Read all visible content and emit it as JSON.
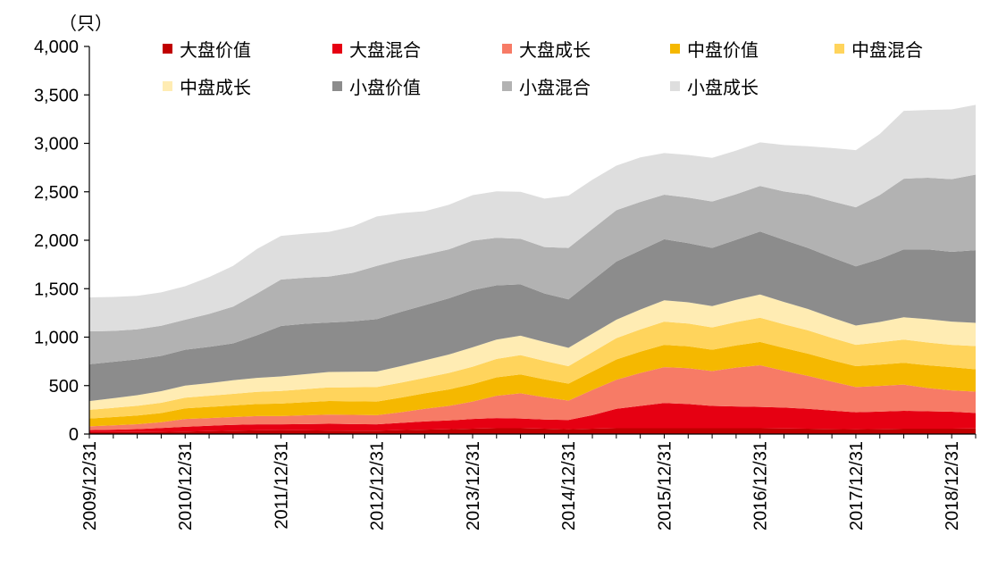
{
  "chart_data": {
    "type": "area",
    "stacked": true,
    "unit_label": "（只）",
    "categories": [
      "2009/12/31",
      "2010/03/31",
      "2010/06/30",
      "2010/09/30",
      "2010/12/31",
      "2011/03/31",
      "2011/06/30",
      "2011/09/30",
      "2011/12/31",
      "2012/03/31",
      "2012/06/30",
      "2012/09/30",
      "2012/12/31",
      "2013/03/31",
      "2013/06/30",
      "2013/09/30",
      "2013/12/31",
      "2014/03/31",
      "2014/06/30",
      "2014/09/30",
      "2014/12/31",
      "2015/03/31",
      "2015/06/30",
      "2015/09/30",
      "2015/12/31",
      "2016/03/31",
      "2016/06/30",
      "2016/09/30",
      "2016/12/31",
      "2017/03/31",
      "2017/06/30",
      "2017/09/30",
      "2017/12/31",
      "2018/03/31",
      "2018/06/30",
      "2018/09/30",
      "2018/12/31",
      "2019/03/31"
    ],
    "xtick_labels": [
      "2009/12/31",
      "2010/12/31",
      "2011/12/31",
      "2012/12/31",
      "2013/12/31",
      "2014/12/31",
      "2015/12/31",
      "2016/12/31",
      "2017/12/31",
      "2018/12/31"
    ],
    "ylim": [
      0,
      4000
    ],
    "yticks": [
      0,
      500,
      1000,
      1500,
      2000,
      2500,
      3000,
      3500,
      4000
    ],
    "ytick_labels": [
      "0",
      "500",
      "1,000",
      "1,500",
      "2,000",
      "2,500",
      "3,000",
      "3,500",
      "4,000"
    ],
    "series": [
      {
        "name": "大盘价值",
        "color": "#C00000",
        "values": [
          20,
          20,
          21,
          22,
          25,
          30,
          35,
          38,
          40,
          38,
          36,
          35,
          35,
          40,
          45,
          50,
          55,
          60,
          60,
          55,
          50,
          55,
          60,
          60,
          60,
          60,
          60,
          60,
          60,
          58,
          55,
          52,
          50,
          52,
          55,
          55,
          55,
          58
        ]
      },
      {
        "name": "大盘混合",
        "color": "#E60012",
        "values": [
          20,
          25,
          30,
          40,
          50,
          55,
          60,
          62,
          60,
          65,
          70,
          68,
          65,
          75,
          85,
          90,
          100,
          105,
          100,
          95,
          95,
          140,
          200,
          230,
          260,
          250,
          230,
          225,
          220,
          215,
          205,
          190,
          175,
          180,
          185,
          180,
          175,
          160
        ]
      },
      {
        "name": "大盘成长",
        "color": "#F77B66",
        "values": [
          40,
          45,
          50,
          60,
          80,
          80,
          80,
          85,
          85,
          90,
          95,
          95,
          95,
          110,
          130,
          150,
          180,
          230,
          260,
          230,
          200,
          260,
          300,
          340,
          370,
          370,
          360,
          400,
          430,
          380,
          340,
          300,
          260,
          265,
          270,
          240,
          220,
          220
        ]
      },
      {
        "name": "中盘价值",
        "color": "#F5B800",
        "values": [
          80,
          85,
          90,
          95,
          110,
          115,
          120,
          125,
          130,
          135,
          140,
          140,
          140,
          150,
          160,
          170,
          180,
          190,
          195,
          185,
          175,
          190,
          210,
          220,
          230,
          225,
          220,
          230,
          240,
          235,
          230,
          220,
          215,
          220,
          225,
          235,
          240,
          230
        ]
      },
      {
        "name": "中盘混合",
        "color": "#FFD45C",
        "values": [
          90,
          95,
          100,
          105,
          110,
          115,
          120,
          125,
          130,
          135,
          140,
          145,
          150,
          155,
          160,
          170,
          180,
          190,
          200,
          190,
          180,
          200,
          220,
          230,
          240,
          235,
          230,
          240,
          250,
          245,
          240,
          230,
          220,
          230,
          240,
          235,
          230,
          240
        ]
      },
      {
        "name": "中盘成长",
        "color": "#FFECB3",
        "values": [
          90,
          100,
          110,
          120,
          125,
          130,
          140,
          145,
          150,
          155,
          160,
          160,
          160,
          170,
          180,
          190,
          200,
          200,
          200,
          195,
          190,
          190,
          190,
          205,
          220,
          220,
          220,
          230,
          240,
          230,
          220,
          210,
          200,
          210,
          230,
          240,
          240,
          240
        ]
      },
      {
        "name": "小盘价值",
        "color": "#8C8C8C",
        "values": [
          380,
          375,
          370,
          365,
          370,
          375,
          380,
          440,
          520,
          520,
          510,
          520,
          540,
          560,
          570,
          580,
          590,
          560,
          530,
          500,
          500,
          550,
          600,
          610,
          630,
          610,
          600,
          620,
          650,
          640,
          630,
          620,
          610,
          650,
          700,
          720,
          720,
          750
        ]
      },
      {
        "name": "小盘混合",
        "color": "#B2B2B2",
        "values": [
          340,
          320,
          310,
          310,
          310,
          340,
          380,
          430,
          480,
          475,
          475,
          500,
          550,
          540,
          520,
          505,
          510,
          490,
          470,
          480,
          530,
          530,
          530,
          500,
          460,
          470,
          480,
          470,
          470,
          500,
          550,
          580,
          610,
          660,
          730,
          740,
          750,
          780
        ]
      },
      {
        "name": "小盘成长",
        "color": "#DEDEDE",
        "values": [
          350,
          350,
          345,
          345,
          345,
          380,
          420,
          460,
          450,
          455,
          460,
          480,
          510,
          480,
          450,
          460,
          470,
          480,
          485,
          500,
          540,
          510,
          460,
          460,
          430,
          440,
          450,
          450,
          450,
          480,
          500,
          550,
          590,
          630,
          700,
          700,
          720,
          720
        ]
      }
    ]
  }
}
